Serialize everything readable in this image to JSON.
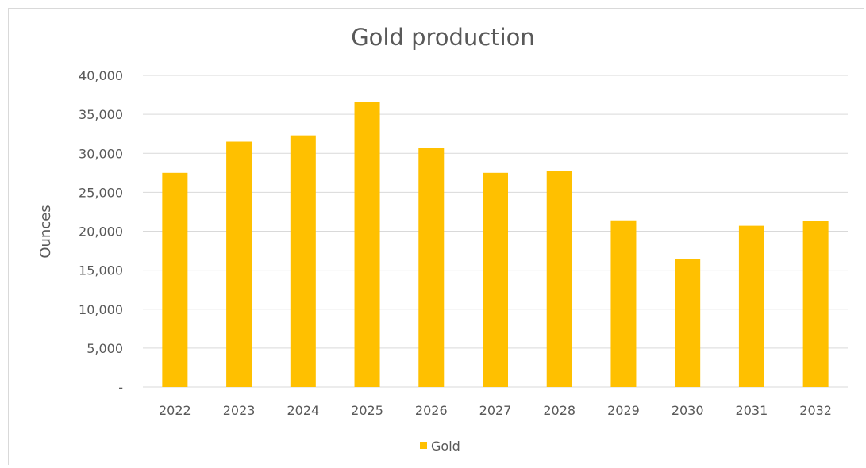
{
  "chart_data": {
    "type": "bar",
    "title": "Gold production",
    "xlabel": "",
    "ylabel": "Ounces",
    "ylim": [
      0,
      40000
    ],
    "yticks": [
      0,
      5000,
      10000,
      15000,
      20000,
      25000,
      30000,
      35000,
      40000
    ],
    "ytick_labels": [
      "-",
      "5,000",
      "10,000",
      "15,000",
      "20,000",
      "25,000",
      "30,000",
      "35,000",
      "40,000"
    ],
    "categories": [
      "2022",
      "2023",
      "2024",
      "2025",
      "2026",
      "2027",
      "2028",
      "2029",
      "2030",
      "2031",
      "2032"
    ],
    "series": [
      {
        "name": "Gold",
        "color": "#FFC000",
        "values": [
          27500,
          31500,
          32300,
          36600,
          30700,
          27500,
          27700,
          21400,
          16400,
          20700,
          21300
        ]
      }
    ],
    "grid": true,
    "legend_position": "bottom"
  }
}
